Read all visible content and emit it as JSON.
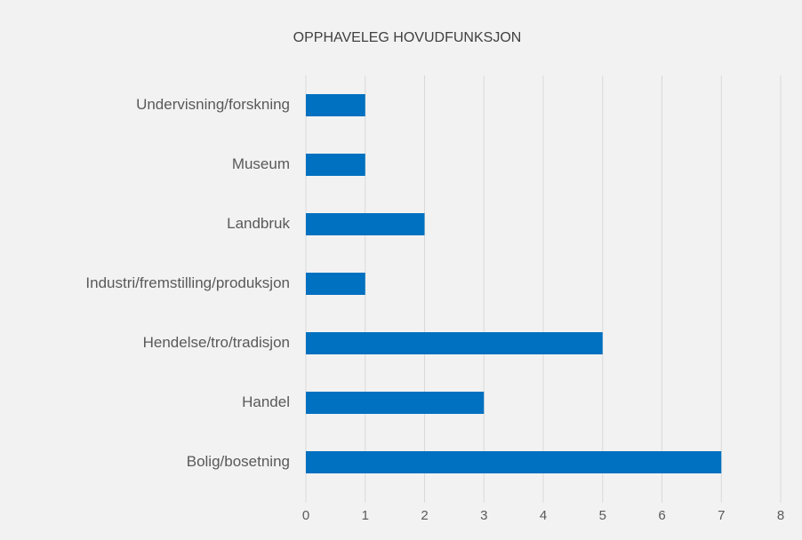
{
  "chart_data": {
    "type": "barh",
    "title": "OPPHAVELEG HOVUDFUNKSJON",
    "categories": [
      "Undervisning/forskning",
      "Museum",
      "Landbruk",
      "Industri/fremstilling/produksjon",
      "Hendelse/tro/tradisjon",
      "Handel",
      "Bolig/bosetning"
    ],
    "values": [
      1,
      1,
      2,
      1,
      5,
      3,
      7
    ],
    "color": "#0070c0",
    "xlim": [
      0,
      8
    ],
    "xticks": [
      0,
      1,
      2,
      3,
      4,
      5,
      6,
      7,
      8
    ],
    "grid": true
  }
}
